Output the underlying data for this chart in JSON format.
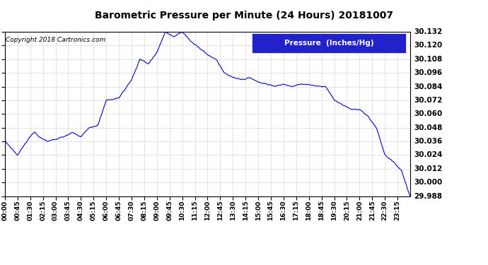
{
  "title": "Barometric Pressure per Minute (24 Hours) 20181007",
  "copyright": "Copyright 2018 Cartronics.com",
  "legend_label": "Pressure  (Inches/Hg)",
  "line_color": "#0000cc",
  "background_color": "#ffffff",
  "grid_color": "#bbbbbb",
  "legend_bg": "#2222cc",
  "legend_fg": "#ffffff",
  "ylim": [
    29.988,
    30.132
  ],
  "yticks": [
    29.988,
    30.0,
    30.012,
    30.024,
    30.036,
    30.048,
    30.06,
    30.072,
    30.084,
    30.096,
    30.108,
    30.12,
    30.132
  ],
  "xtick_labels": [
    "00:00",
    "00:45",
    "01:30",
    "02:15",
    "03:00",
    "03:45",
    "04:30",
    "05:15",
    "06:00",
    "06:45",
    "07:30",
    "08:15",
    "09:00",
    "09:45",
    "10:30",
    "11:15",
    "12:00",
    "12:45",
    "13:30",
    "14:15",
    "15:00",
    "15:45",
    "16:30",
    "17:15",
    "18:00",
    "18:45",
    "19:30",
    "20:15",
    "21:00",
    "21:45",
    "22:30",
    "23:15"
  ],
  "keypoints_x_min": [
    0,
    45,
    60,
    90,
    105,
    120,
    135,
    150,
    180,
    210,
    240,
    270,
    300,
    330,
    360,
    405,
    450,
    480,
    510,
    540,
    570,
    600,
    630,
    660,
    690,
    720,
    750,
    780,
    810,
    840,
    870,
    900,
    930,
    960,
    990,
    1020,
    1050,
    1080,
    1110,
    1140,
    1170,
    1200,
    1230,
    1260,
    1290,
    1320,
    1350,
    1380,
    1410,
    1439
  ],
  "keypoints_y": [
    30.036,
    30.024,
    30.03,
    30.04,
    30.044,
    30.04,
    30.038,
    30.036,
    30.038,
    30.04,
    30.044,
    30.04,
    30.048,
    30.05,
    30.072,
    30.074,
    30.09,
    30.108,
    30.104,
    30.114,
    30.132,
    30.128,
    30.132,
    30.124,
    30.118,
    30.112,
    30.108,
    30.096,
    30.092,
    30.09,
    30.092,
    30.088,
    30.086,
    30.084,
    30.086,
    30.084,
    30.086,
    30.086,
    30.084,
    30.084,
    30.072,
    30.068,
    30.064,
    30.064,
    30.058,
    30.048,
    30.024,
    30.018,
    30.01,
    29.988
  ]
}
